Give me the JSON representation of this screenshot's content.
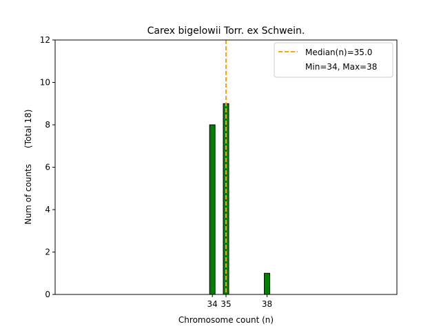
{
  "chart_data": {
    "type": "bar",
    "title": "Carex bigelowii Torr. ex Schwein.",
    "xlabel": "Chromosome count (n)",
    "ylabel": "Num of counts      (Total 18)",
    "x_ticks": [
      34,
      35,
      38
    ],
    "y_ticks": [
      0,
      2,
      4,
      6,
      8,
      10,
      12
    ],
    "ylim": [
      0,
      12
    ],
    "xlim": [
      22.5,
      47.5
    ],
    "bars": [
      {
        "x": 34,
        "count": 8
      },
      {
        "x": 35,
        "count": 9
      },
      {
        "x": 36,
        "count": 0
      },
      {
        "x": 37,
        "count": 0
      },
      {
        "x": 38,
        "count": 1
      }
    ],
    "bar_color": "#008000",
    "median": 35.0,
    "median_color": "#FFA500",
    "legend": {
      "placement": "top-right",
      "entries": [
        "Median(n)=35.0",
        "Min=34, Max=38"
      ]
    }
  }
}
